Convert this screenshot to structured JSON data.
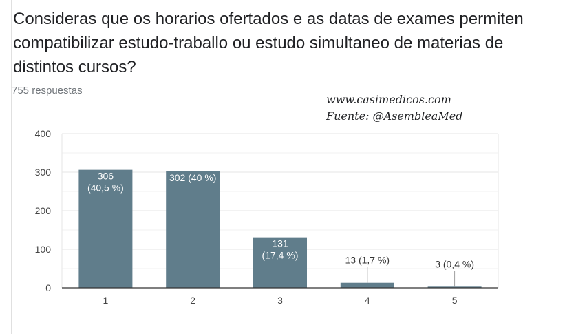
{
  "question": "Consideras que os horarios ofertados e as datas de exames permiten compatibilizar estudo-traballo ou estudo simultaneo de materias de distintos cursos?",
  "responses": "755 respuestas",
  "watermark": {
    "line1": "www.casimedicos.com",
    "line2": "Fuente: @AsembleaMed"
  },
  "chart_data": {
    "type": "bar",
    "categories": [
      "1",
      "2",
      "3",
      "4",
      "5"
    ],
    "values": [
      306,
      302,
      131,
      13,
      3
    ],
    "labels": [
      "306\n(40,5 %)",
      "302 (40 %)",
      "131\n(17,4 %)",
      "13 (1,7 %)",
      "3 (0,4 %)"
    ],
    "ylim": [
      0,
      400
    ],
    "yticks": [
      0,
      100,
      200,
      300,
      400
    ],
    "grid": true,
    "bar_color": "#607d8b",
    "grid_color": "#e6e6e6",
    "axis_color": "#333333"
  }
}
